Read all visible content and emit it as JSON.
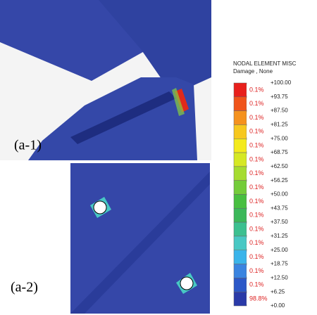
{
  "panels": [
    {
      "label": "(a-1)"
    },
    {
      "label": "(a-2)"
    }
  ],
  "legend": {
    "title": "NODAL ELEMENT MISC",
    "subtitle": "Damage , None",
    "ticks": [
      "+100.00",
      "+93.75",
      "+87.50",
      "+81.25",
      "+75.00",
      "+68.75",
      "+62.50",
      "+56.25",
      "+50.00",
      "+43.75",
      "+37.50",
      "+31.25",
      "+25.00",
      "+18.75",
      "+12.50",
      "+6.25",
      "+0.00"
    ],
    "bins": [
      {
        "label": "0.1%",
        "color": "#e8201c"
      },
      {
        "label": "0.1%",
        "color": "#f0541a"
      },
      {
        "label": "0.1%",
        "color": "#f5921e"
      },
      {
        "label": "0.1%",
        "color": "#f7c81e"
      },
      {
        "label": "0.1%",
        "color": "#f4ea1c"
      },
      {
        "label": "0.1%",
        "color": "#d6e824"
      },
      {
        "label": "0.1%",
        "color": "#a6dc30"
      },
      {
        "label": "0.1%",
        "color": "#74cc3a"
      },
      {
        "label": "0.1%",
        "color": "#48bf40"
      },
      {
        "label": "0.1%",
        "color": "#3cb85a"
      },
      {
        "label": "0.1%",
        "color": "#3cc090"
      },
      {
        "label": "0.1%",
        "color": "#48c8c4"
      },
      {
        "label": "0.1%",
        "color": "#3ab4ea"
      },
      {
        "label": "0.1%",
        "color": "#3a84e0"
      },
      {
        "label": "0.1%",
        "color": "#2c58c8"
      },
      {
        "label": "98.8%",
        "color": "#2a3aa8"
      }
    ]
  }
}
